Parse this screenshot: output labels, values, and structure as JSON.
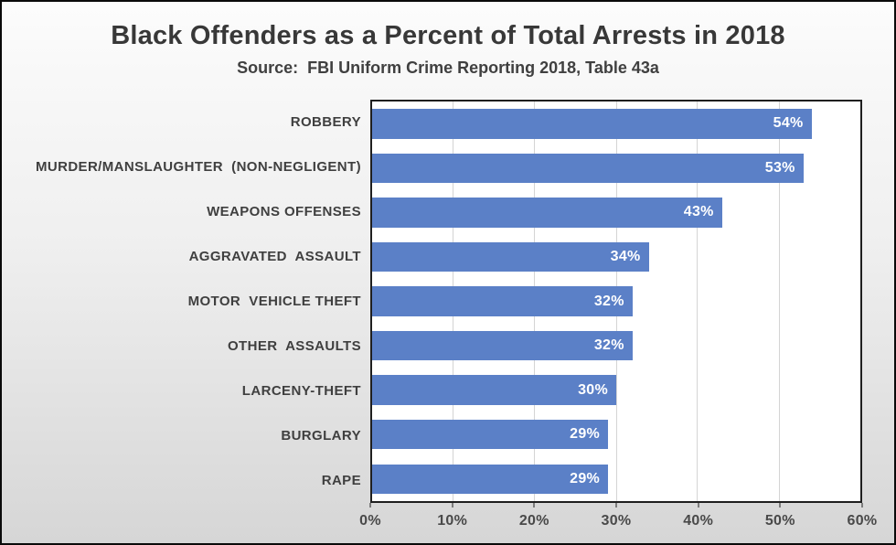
{
  "chart_data": {
    "type": "bar",
    "orientation": "horizontal",
    "title": "Black Offenders as a Percent of Total Arrests in 2018",
    "subtitle": "Source:  FBI Uniform Crime Reporting 2018, Table 43a",
    "categories": [
      "ROBBERY",
      "MURDER/MANSLAUGHTER  (NON-NEGLIGENT)",
      "WEAPONS OFFENSES",
      "AGGRAVATED  ASSAULT",
      "MOTOR  VEHICLE THEFT",
      "OTHER  ASSAULTS",
      "LARCENY-THEFT",
      "BURGLARY",
      "RAPE"
    ],
    "values": [
      54,
      53,
      43,
      34,
      32,
      32,
      30,
      29,
      29
    ],
    "value_labels": [
      "54%",
      "53%",
      "43%",
      "34%",
      "32%",
      "32%",
      "30%",
      "29%",
      "29%"
    ],
    "x_ticks": [
      "0%",
      "10%",
      "20%",
      "30%",
      "40%",
      "50%",
      "60%"
    ],
    "x_tick_values": [
      0,
      10,
      20,
      30,
      40,
      50,
      60
    ],
    "xlim": [
      0,
      60
    ],
    "grid": true,
    "legend": false,
    "bar_color": "#5b80c7",
    "value_label_color": "#ffffff",
    "plot_background": "#ffffff"
  }
}
